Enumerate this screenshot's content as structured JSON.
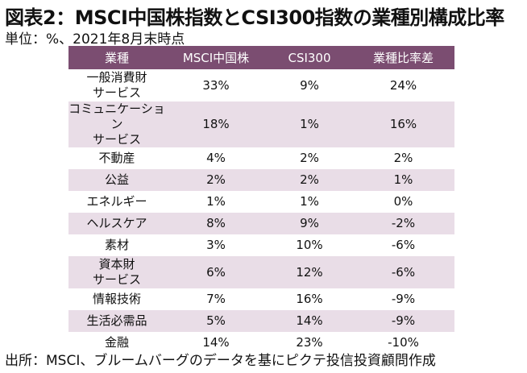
{
  "title": "図表2：MSCI中国株指数とCSI300指数の業種別構成比率",
  "subtitle": "単位：%、2021年8月末時点",
  "source": "出所：MSCI、ブルームバーグのデータを基にピクテ投信投資顧問作成",
  "colors": {
    "header_bg": "#7b4d71",
    "stripe_bg": "#e9dde7"
  },
  "chart_data": {
    "type": "table",
    "columns": [
      "業種",
      "MSCI中国株",
      "CSI300",
      "業種比率差"
    ],
    "rows": [
      {
        "sector": "一般消費財\nサービス",
        "msci": "33%",
        "csi": "9%",
        "diff": "24%"
      },
      {
        "sector": "コミュニケーション\nサービス",
        "msci": "18%",
        "csi": "1%",
        "diff": "16%"
      },
      {
        "sector": "不動産",
        "msci": "4%",
        "csi": "2%",
        "diff": "2%"
      },
      {
        "sector": "公益",
        "msci": "2%",
        "csi": "2%",
        "diff": "1%"
      },
      {
        "sector": "エネルギー",
        "msci": "1%",
        "csi": "1%",
        "diff": "0%"
      },
      {
        "sector": "ヘルスケア",
        "msci": "8%",
        "csi": "9%",
        "diff": "-2%"
      },
      {
        "sector": "素材",
        "msci": "3%",
        "csi": "10%",
        "diff": "-6%"
      },
      {
        "sector": "資本財\nサービス",
        "msci": "6%",
        "csi": "12%",
        "diff": "-6%"
      },
      {
        "sector": "情報技術",
        "msci": "7%",
        "csi": "16%",
        "diff": "-9%"
      },
      {
        "sector": "生活必需品",
        "msci": "5%",
        "csi": "14%",
        "diff": "-9%"
      },
      {
        "sector": "金融",
        "msci": "14%",
        "csi": "23%",
        "diff": "-10%"
      }
    ]
  }
}
